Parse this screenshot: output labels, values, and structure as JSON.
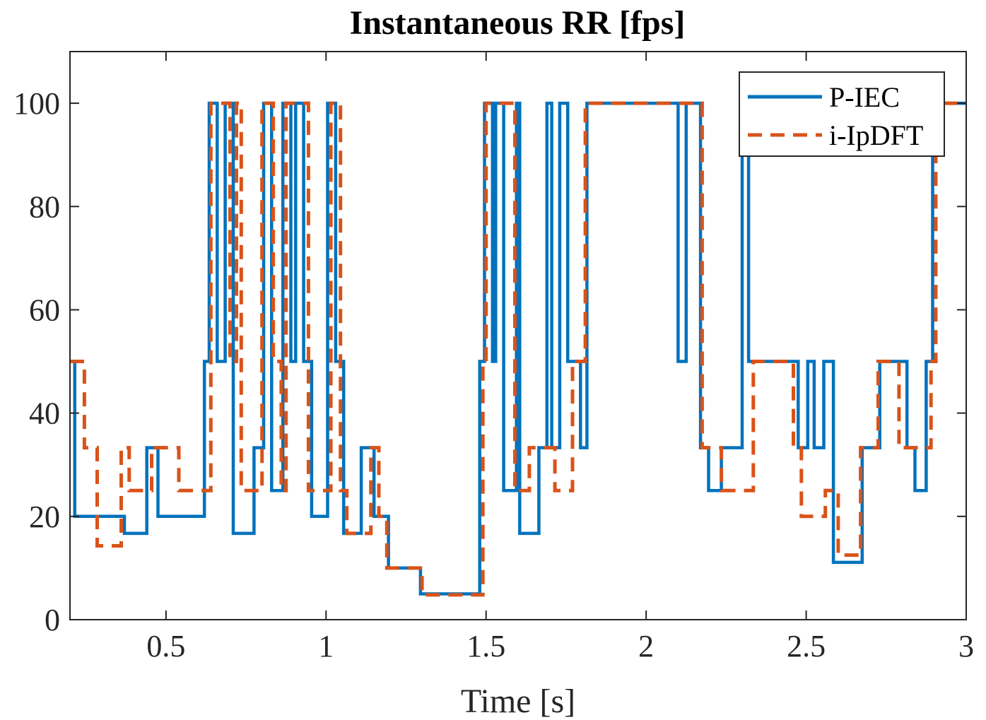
{
  "chart_data": {
    "type": "line",
    "title": "Instantaneous RR [fps]",
    "xlabel": "Time [s]",
    "ylabel": "",
    "xlim": [
      0.2,
      3.0
    ],
    "ylim": [
      0,
      110
    ],
    "x_ticks": [
      0.5,
      1,
      1.5,
      2,
      2.5,
      3
    ],
    "x_tick_labels": [
      "0.5",
      "1",
      "1.5",
      "2",
      "2.5",
      "3"
    ],
    "y_ticks": [
      0,
      20,
      40,
      60,
      80,
      100
    ],
    "y_tick_labels": [
      "0",
      "20",
      "40",
      "60",
      "80",
      "100"
    ],
    "grid": false,
    "legend_position": "top-right",
    "step": true,
    "series": [
      {
        "name": "P-IEC",
        "color": "#0072BD",
        "style": "solid",
        "points": [
          [
            0.2,
            50
          ],
          [
            0.215,
            20
          ],
          [
            0.37,
            16.7
          ],
          [
            0.44,
            33.3
          ],
          [
            0.475,
            20
          ],
          [
            0.62,
            50
          ],
          [
            0.635,
            100
          ],
          [
            0.66,
            50
          ],
          [
            0.685,
            100
          ],
          [
            0.71,
            16.7
          ],
          [
            0.775,
            33.3
          ],
          [
            0.805,
            100
          ],
          [
            0.83,
            25
          ],
          [
            0.865,
            100
          ],
          [
            0.89,
            50
          ],
          [
            0.905,
            100
          ],
          [
            0.93,
            50
          ],
          [
            0.955,
            20
          ],
          [
            1.005,
            100
          ],
          [
            1.03,
            50
          ],
          [
            1.055,
            16.7
          ],
          [
            1.11,
            33.3
          ],
          [
            1.15,
            20
          ],
          [
            1.195,
            10
          ],
          [
            1.295,
            5
          ],
          [
            1.48,
            50
          ],
          [
            1.495,
            100
          ],
          [
            1.52,
            50
          ],
          [
            1.53,
            100
          ],
          [
            1.555,
            25
          ],
          [
            1.595,
            100
          ],
          [
            1.605,
            16.7
          ],
          [
            1.665,
            33.3
          ],
          [
            1.69,
            100
          ],
          [
            1.705,
            33.3
          ],
          [
            1.73,
            100
          ],
          [
            1.755,
            50
          ],
          [
            1.795,
            33.3
          ],
          [
            1.815,
            100
          ],
          [
            2.1,
            50
          ],
          [
            2.125,
            100
          ],
          [
            2.17,
            33.3
          ],
          [
            2.195,
            25
          ],
          [
            2.235,
            33.3
          ],
          [
            2.3,
            100
          ],
          [
            2.32,
            50
          ],
          [
            2.475,
            33.3
          ],
          [
            2.505,
            50
          ],
          [
            2.525,
            33.3
          ],
          [
            2.555,
            50
          ],
          [
            2.585,
            11.1
          ],
          [
            2.675,
            33.3
          ],
          [
            2.73,
            50
          ],
          [
            2.815,
            33.3
          ],
          [
            2.84,
            25
          ],
          [
            2.875,
            50
          ],
          [
            2.895,
            100
          ],
          [
            3.0,
            100
          ]
        ]
      },
      {
        "name": "i-IpDFT",
        "color": "#D95319",
        "style": "dashed",
        "points": [
          [
            0.2,
            50
          ],
          [
            0.245,
            33.3
          ],
          [
            0.285,
            14.3
          ],
          [
            0.36,
            33.3
          ],
          [
            0.385,
            25
          ],
          [
            0.455,
            33.3
          ],
          [
            0.54,
            25
          ],
          [
            0.64,
            100
          ],
          [
            0.7,
            50
          ],
          [
            0.72,
            100
          ],
          [
            0.735,
            25
          ],
          [
            0.8,
            100
          ],
          [
            0.835,
            50
          ],
          [
            0.86,
            25
          ],
          [
            0.875,
            100
          ],
          [
            0.945,
            25
          ],
          [
            1.015,
            100
          ],
          [
            1.045,
            25
          ],
          [
            1.065,
            16.7
          ],
          [
            1.14,
            33.3
          ],
          [
            1.165,
            20
          ],
          [
            1.19,
            10
          ],
          [
            1.3,
            4.8
          ],
          [
            1.49,
            50
          ],
          [
            1.5,
            100
          ],
          [
            1.59,
            25
          ],
          [
            1.635,
            33.3
          ],
          [
            1.715,
            25
          ],
          [
            1.77,
            50
          ],
          [
            1.81,
            100
          ],
          [
            2.175,
            33.3
          ],
          [
            2.235,
            25
          ],
          [
            2.335,
            50
          ],
          [
            2.46,
            33.3
          ],
          [
            2.485,
            20
          ],
          [
            2.56,
            25
          ],
          [
            2.6,
            12.5
          ],
          [
            2.67,
            33.3
          ],
          [
            2.725,
            50
          ],
          [
            2.79,
            33.3
          ],
          [
            2.89,
            50
          ],
          [
            2.905,
            100
          ],
          [
            3.0,
            100
          ]
        ]
      }
    ]
  }
}
